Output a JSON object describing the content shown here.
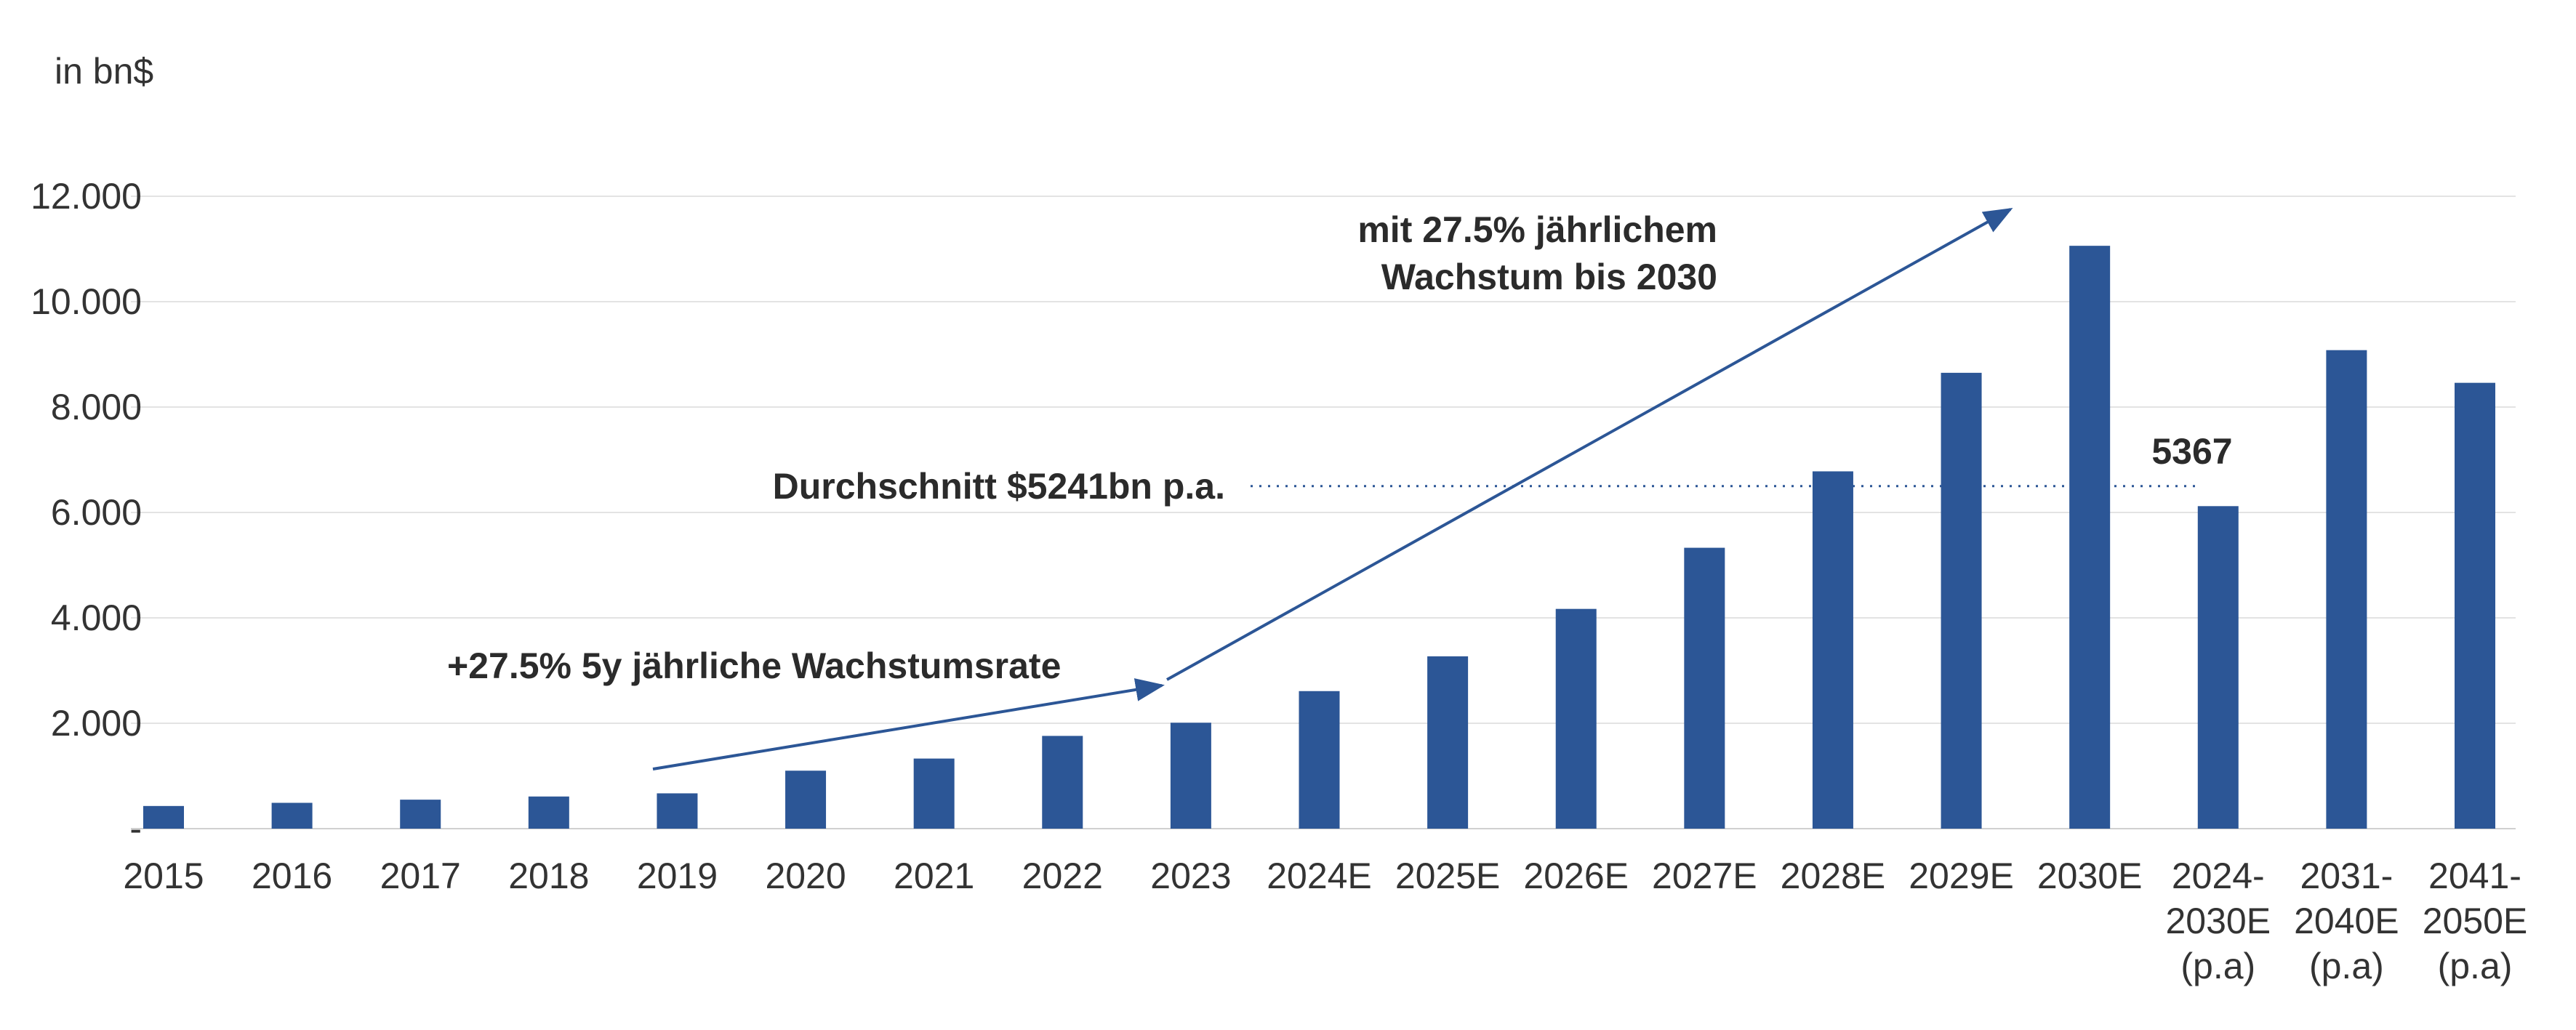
{
  "chart_data": {
    "type": "bar",
    "ylabel": "in bn$",
    "ylim": [
      0,
      12000
    ],
    "grid": true,
    "bar_color": "#2c5696",
    "y_ticks": [
      {
        "value": 0,
        "label": "-"
      },
      {
        "value": 2000,
        "label": "2.000"
      },
      {
        "value": 4000,
        "label": "4.000"
      },
      {
        "value": 6000,
        "label": "6.000"
      },
      {
        "value": 8000,
        "label": "8.000"
      },
      {
        "value": 10000,
        "label": "10.000"
      },
      {
        "value": 12000,
        "label": "12.000"
      }
    ],
    "categories": [
      [
        "2015"
      ],
      [
        "2016"
      ],
      [
        "2017"
      ],
      [
        "2018"
      ],
      [
        "2019"
      ],
      [
        "2020"
      ],
      [
        "2021"
      ],
      [
        "2022"
      ],
      [
        "2023"
      ],
      [
        "2024E"
      ],
      [
        "2025E"
      ],
      [
        "2026E"
      ],
      [
        "2027E"
      ],
      [
        "2028E"
      ],
      [
        "2029E"
      ],
      [
        "2030E"
      ],
      [
        "2024-",
        "2030E",
        "(p.a)"
      ],
      [
        "2031-",
        "2040E",
        "(p.a)"
      ],
      [
        "2041-",
        "2050E",
        "(p.a)"
      ]
    ],
    "values": [
      430,
      490,
      550,
      610,
      670,
      1100,
      1330,
      1760,
      2010,
      2610,
      3270,
      4170,
      5330,
      6780,
      8650,
      11060,
      6120,
      9080,
      8460
    ],
    "annotations": {
      "growth_1": "+27.5% 5y jährliche Wachstumsrate",
      "growth_2_line1": "mit 27.5% jährlichem",
      "growth_2_line2": "Wachstum bis 2030",
      "average_label": "Durchschnitt $5241bn p.a.",
      "average_value": 6500,
      "bar_label": "5367"
    }
  }
}
